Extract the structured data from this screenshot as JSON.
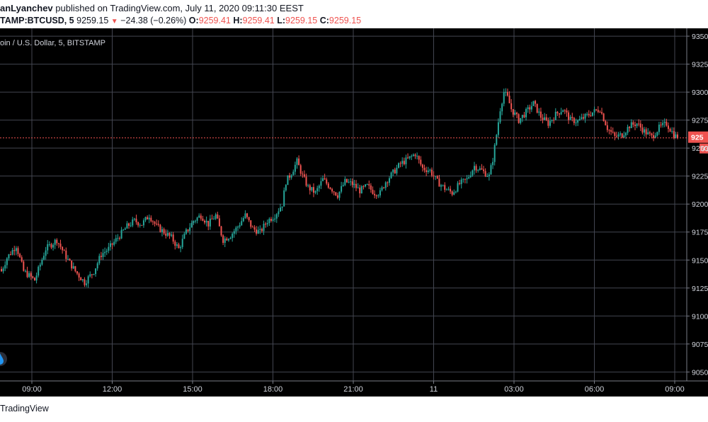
{
  "header": {
    "publisher": "anLyanchev",
    "published_text": "published on TradingView.com, July 11, 2020 09:11:30 EEST"
  },
  "ticker": {
    "symbol": "TAMP:BTCUSD, 5",
    "last": "9259.15",
    "arrow": "▼",
    "change": "−24.38 (−0.26%)",
    "o_label": "O:",
    "o_value": "9259.41",
    "h_label": "H:",
    "h_value": "9259.41",
    "l_label": "L:",
    "l_value": "9259.15",
    "c_label": "C:",
    "c_value": "9259.15"
  },
  "legend_text": "oin / U.S. Dollar, 5, BITSTAMP",
  "footer_text": "TradingView",
  "colors": {
    "background": "#000000",
    "grid": "#434651",
    "up": "#26a69a",
    "down": "#ef5350",
    "text": "#d1d4dc",
    "price_line": "#ef5350"
  },
  "icon": "drop-icon",
  "chart_data": {
    "type": "candlestick",
    "title": "oin / U.S. Dollar, 5, BITSTAMP",
    "xlabel": "",
    "ylabel": "",
    "ylim": [
      9042,
      9357
    ],
    "y_ticks": [
      "9350",
      "9325",
      "9300",
      "9275",
      "9250",
      "9225",
      "9200",
      "9175",
      "9150",
      "9125",
      "9100",
      "9075",
      "9050"
    ],
    "x_ticks": [
      "09:00",
      "12:00",
      "15:00",
      "18:00",
      "21:00",
      "11",
      "03:00",
      "06:00",
      "09:00"
    ],
    "current_price_label": "925",
    "countdown_label": "03",
    "grid": true,
    "close_path": [
      [
        0,
        9140
      ],
      [
        3,
        9152
      ],
      [
        8,
        9163
      ],
      [
        12,
        9140
      ],
      [
        18,
        9132
      ],
      [
        24,
        9160
      ],
      [
        30,
        9168
      ],
      [
        36,
        9150
      ],
      [
        40,
        9140
      ],
      [
        45,
        9130
      ],
      [
        50,
        9140
      ],
      [
        54,
        9155
      ],
      [
        58,
        9160
      ],
      [
        62,
        9168
      ],
      [
        68,
        9180
      ],
      [
        72,
        9185
      ],
      [
        76,
        9182
      ],
      [
        80,
        9190
      ],
      [
        84,
        9180
      ],
      [
        88,
        9175
      ],
      [
        92,
        9170
      ],
      [
        96,
        9160
      ],
      [
        100,
        9175
      ],
      [
        104,
        9185
      ],
      [
        108,
        9190
      ],
      [
        112,
        9182
      ],
      [
        116,
        9190
      ],
      [
        120,
        9168
      ],
      [
        124,
        9172
      ],
      [
        128,
        9180
      ],
      [
        132,
        9190
      ],
      [
        136,
        9178
      ],
      [
        140,
        9175
      ],
      [
        144,
        9185
      ],
      [
        148,
        9190
      ],
      [
        152,
        9200
      ],
      [
        154,
        9220
      ],
      [
        157,
        9228
      ],
      [
        160,
        9238
      ],
      [
        163,
        9225
      ],
      [
        166,
        9215
      ],
      [
        170,
        9210
      ],
      [
        174,
        9222
      ],
      [
        178,
        9215
      ],
      [
        182,
        9208
      ],
      [
        186,
        9220
      ],
      [
        190,
        9218
      ],
      [
        194,
        9212
      ],
      [
        198,
        9216
      ],
      [
        202,
        9210
      ],
      [
        205,
        9210
      ],
      [
        208,
        9220
      ],
      [
        212,
        9228
      ],
      [
        216,
        9236
      ],
      [
        220,
        9240
      ],
      [
        224,
        9245
      ],
      [
        228,
        9232
      ],
      [
        232,
        9230
      ],
      [
        236,
        9220
      ],
      [
        240,
        9214
      ],
      [
        244,
        9210
      ],
      [
        248,
        9218
      ],
      [
        252,
        9222
      ],
      [
        256,
        9234
      ],
      [
        260,
        9230
      ],
      [
        264,
        9225
      ],
      [
        266,
        9240
      ],
      [
        268,
        9262
      ],
      [
        270,
        9285
      ],
      [
        272,
        9300
      ],
      [
        274,
        9295
      ],
      [
        276,
        9285
      ],
      [
        280,
        9275
      ],
      [
        284,
        9282
      ],
      [
        288,
        9290
      ],
      [
        292,
        9278
      ],
      [
        296,
        9272
      ],
      [
        300,
        9280
      ],
      [
        304,
        9285
      ],
      [
        308,
        9275
      ],
      [
        312,
        9274
      ],
      [
        316,
        9278
      ],
      [
        320,
        9282
      ],
      [
        324,
        9285
      ],
      [
        328,
        9268
      ],
      [
        332,
        9260
      ],
      [
        336,
        9262
      ],
      [
        340,
        9270
      ],
      [
        344,
        9272
      ],
      [
        348,
        9265
      ],
      [
        352,
        9260
      ],
      [
        356,
        9268
      ],
      [
        360,
        9272
      ],
      [
        364,
        9262
      ],
      [
        366,
        9259.15
      ]
    ]
  }
}
